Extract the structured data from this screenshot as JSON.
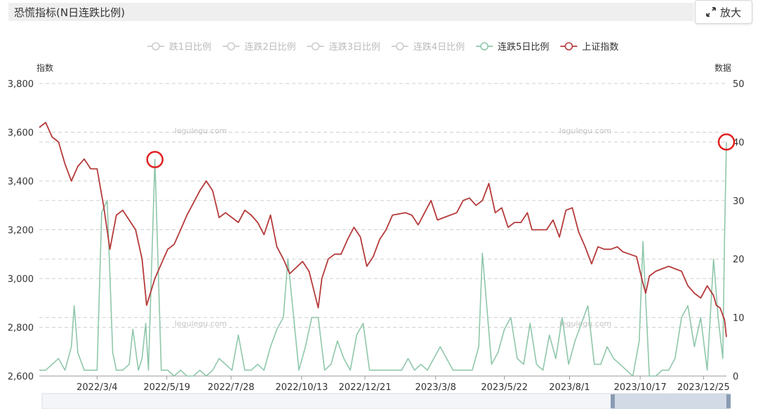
{
  "header": {
    "title": "恐慌指标(N日连跌比例)",
    "zoom_label": "放大"
  },
  "watermark": "legulegu.com",
  "chart_data": {
    "type": "line",
    "title": "恐慌指标(N日连跌比例)",
    "y_left_label": "指数",
    "y_right_label": "数据",
    "y_left_range": [
      2600,
      3800
    ],
    "y_left_ticks": [
      "2,600",
      "2,800",
      "3,000",
      "3,200",
      "3,400",
      "3,600",
      "3,800"
    ],
    "y_right_range": [
      0,
      50
    ],
    "y_right_ticks": [
      "0",
      "10",
      "20",
      "30",
      "40",
      "50"
    ],
    "x_range": [
      "2021-12-31",
      "2024-01-19"
    ],
    "x_ticks": [
      "2022/3/4",
      "2022/5/19",
      "2022/7/28",
      "2022/10/13",
      "2022/12/21",
      "2023/3/8",
      "2023/5/22",
      "2023/8/1",
      "2023/10/17",
      "2023/12/25"
    ],
    "legend": [
      {
        "name": "跌1日比例",
        "active": false,
        "color": "#cccccc"
      },
      {
        "name": "连跌2日比例",
        "active": false,
        "color": "#cccccc"
      },
      {
        "name": "连跌3日比例",
        "active": false,
        "color": "#cccccc"
      },
      {
        "name": "连跌4日比例",
        "active": false,
        "color": "#cccccc"
      },
      {
        "name": "连跌5日比例",
        "active": true,
        "color": "#8fc7aa"
      },
      {
        "name": "上证指数",
        "active": true,
        "color": "#b53a3a"
      }
    ],
    "series": [
      {
        "name": "上证指数",
        "axis": "left",
        "color": "#b53a3a",
        "points": [
          [
            "2021-12-31",
            3620
          ],
          [
            "2022-01-07",
            3640
          ],
          [
            "2022-01-14",
            3580
          ],
          [
            "2022-01-21",
            3560
          ],
          [
            "2022-01-28",
            3470
          ],
          [
            "2022-02-04",
            3400
          ],
          [
            "2022-02-11",
            3460
          ],
          [
            "2022-02-18",
            3490
          ],
          [
            "2022-02-25",
            3450
          ],
          [
            "2022-03-04",
            3450
          ],
          [
            "2022-03-11",
            3300
          ],
          [
            "2022-03-18",
            3120
          ],
          [
            "2022-03-25",
            3260
          ],
          [
            "2022-04-01",
            3280
          ],
          [
            "2022-04-08",
            3240
          ],
          [
            "2022-04-15",
            3200
          ],
          [
            "2022-04-22",
            3080
          ],
          [
            "2022-04-27",
            2890
          ],
          [
            "2022-05-06",
            3000
          ],
          [
            "2022-05-13",
            3060
          ],
          [
            "2022-05-20",
            3120
          ],
          [
            "2022-05-27",
            3140
          ],
          [
            "2022-06-03",
            3200
          ],
          [
            "2022-06-10",
            3260
          ],
          [
            "2022-06-17",
            3310
          ],
          [
            "2022-06-24",
            3360
          ],
          [
            "2022-07-01",
            3400
          ],
          [
            "2022-07-08",
            3360
          ],
          [
            "2022-07-15",
            3250
          ],
          [
            "2022-07-22",
            3270
          ],
          [
            "2022-07-29",
            3250
          ],
          [
            "2022-08-05",
            3230
          ],
          [
            "2022-08-12",
            3280
          ],
          [
            "2022-08-19",
            3260
          ],
          [
            "2022-08-26",
            3230
          ],
          [
            "2022-09-02",
            3180
          ],
          [
            "2022-09-09",
            3260
          ],
          [
            "2022-09-16",
            3130
          ],
          [
            "2022-09-23",
            3080
          ],
          [
            "2022-09-30",
            3020
          ],
          [
            "2022-10-14",
            3070
          ],
          [
            "2022-10-21",
            3030
          ],
          [
            "2022-10-31",
            2880
          ],
          [
            "2022-11-04",
            3000
          ],
          [
            "2022-11-11",
            3080
          ],
          [
            "2022-11-18",
            3100
          ],
          [
            "2022-11-25",
            3100
          ],
          [
            "2022-12-02",
            3160
          ],
          [
            "2022-12-09",
            3210
          ],
          [
            "2022-12-16",
            3170
          ],
          [
            "2022-12-23",
            3050
          ],
          [
            "2022-12-30",
            3090
          ],
          [
            "2023-01-06",
            3160
          ],
          [
            "2023-01-13",
            3200
          ],
          [
            "2023-01-20",
            3260
          ],
          [
            "2023-02-03",
            3270
          ],
          [
            "2023-02-10",
            3260
          ],
          [
            "2023-02-17",
            3220
          ],
          [
            "2023-02-24",
            3270
          ],
          [
            "2023-03-03",
            3320
          ],
          [
            "2023-03-10",
            3240
          ],
          [
            "2023-03-17",
            3250
          ],
          [
            "2023-03-24",
            3260
          ],
          [
            "2023-03-31",
            3270
          ],
          [
            "2023-04-07",
            3320
          ],
          [
            "2023-04-14",
            3330
          ],
          [
            "2023-04-21",
            3300
          ],
          [
            "2023-04-28",
            3320
          ],
          [
            "2023-05-05",
            3390
          ],
          [
            "2023-05-12",
            3270
          ],
          [
            "2023-05-19",
            3290
          ],
          [
            "2023-05-26",
            3210
          ],
          [
            "2023-06-02",
            3230
          ],
          [
            "2023-06-09",
            3230
          ],
          [
            "2023-06-16",
            3270
          ],
          [
            "2023-06-21",
            3200
          ],
          [
            "2023-06-30",
            3200
          ],
          [
            "2023-07-07",
            3200
          ],
          [
            "2023-07-14",
            3240
          ],
          [
            "2023-07-21",
            3170
          ],
          [
            "2023-07-28",
            3280
          ],
          [
            "2023-08-04",
            3290
          ],
          [
            "2023-08-11",
            3190
          ],
          [
            "2023-08-18",
            3130
          ],
          [
            "2023-08-25",
            3060
          ],
          [
            "2023-09-01",
            3130
          ],
          [
            "2023-09-08",
            3120
          ],
          [
            "2023-09-15",
            3120
          ],
          [
            "2023-09-22",
            3130
          ],
          [
            "2023-09-28",
            3110
          ],
          [
            "2023-10-13",
            3090
          ],
          [
            "2023-10-20",
            2980
          ],
          [
            "2023-10-23",
            2940
          ],
          [
            "2023-10-27",
            3010
          ],
          [
            "2023-11-03",
            3030
          ],
          [
            "2023-11-10",
            3040
          ],
          [
            "2023-11-17",
            3050
          ],
          [
            "2023-11-24",
            3040
          ],
          [
            "2023-12-01",
            3030
          ],
          [
            "2023-12-08",
            2970
          ],
          [
            "2023-12-15",
            2940
          ],
          [
            "2023-12-22",
            2920
          ],
          [
            "2023-12-29",
            2970
          ],
          [
            "2024-01-05",
            2930
          ],
          [
            "2024-01-08",
            2890
          ],
          [
            "2024-01-12",
            2880
          ],
          [
            "2024-01-17",
            2830
          ],
          [
            "2024-01-19",
            2760
          ]
        ]
      },
      {
        "name": "连跌5日比例",
        "axis": "right",
        "color": "#8fc7aa",
        "points": [
          [
            "2021-12-31",
            1
          ],
          [
            "2022-01-07",
            1
          ],
          [
            "2022-01-14",
            2
          ],
          [
            "2022-01-21",
            3
          ],
          [
            "2022-01-28",
            1
          ],
          [
            "2022-02-04",
            5
          ],
          [
            "2022-02-07",
            12
          ],
          [
            "2022-02-11",
            4
          ],
          [
            "2022-02-18",
            1
          ],
          [
            "2022-02-25",
            1
          ],
          [
            "2022-03-04",
            1
          ],
          [
            "2022-03-09",
            28
          ],
          [
            "2022-03-15",
            30
          ],
          [
            "2022-03-21",
            4
          ],
          [
            "2022-03-25",
            1
          ],
          [
            "2022-04-01",
            1
          ],
          [
            "2022-04-08",
            2
          ],
          [
            "2022-04-12",
            8
          ],
          [
            "2022-04-18",
            1
          ],
          [
            "2022-04-22",
            3
          ],
          [
            "2022-04-26",
            9
          ],
          [
            "2022-04-29",
            1
          ],
          [
            "2022-05-06",
            37
          ],
          [
            "2022-05-13",
            1
          ],
          [
            "2022-05-20",
            1
          ],
          [
            "2022-05-27",
            0
          ],
          [
            "2022-06-03",
            1
          ],
          [
            "2022-06-10",
            0
          ],
          [
            "2022-06-17",
            0
          ],
          [
            "2022-06-24",
            1
          ],
          [
            "2022-07-01",
            0
          ],
          [
            "2022-07-08",
            1
          ],
          [
            "2022-07-15",
            3
          ],
          [
            "2022-07-22",
            2
          ],
          [
            "2022-07-29",
            1
          ],
          [
            "2022-08-05",
            7
          ],
          [
            "2022-08-12",
            1
          ],
          [
            "2022-08-19",
            1
          ],
          [
            "2022-08-26",
            2
          ],
          [
            "2022-09-02",
            1
          ],
          [
            "2022-09-09",
            5
          ],
          [
            "2022-09-16",
            8
          ],
          [
            "2022-09-23",
            10
          ],
          [
            "2022-09-28",
            20
          ],
          [
            "2022-10-10",
            1
          ],
          [
            "2022-10-17",
            5
          ],
          [
            "2022-10-24",
            10
          ],
          [
            "2022-10-31",
            10
          ],
          [
            "2022-11-07",
            1
          ],
          [
            "2022-11-14",
            2
          ],
          [
            "2022-11-21",
            6
          ],
          [
            "2022-11-28",
            3
          ],
          [
            "2022-12-05",
            1
          ],
          [
            "2022-12-12",
            7
          ],
          [
            "2022-12-19",
            9
          ],
          [
            "2022-12-26",
            1
          ],
          [
            "2023-01-02",
            1
          ],
          [
            "2023-01-09",
            1
          ],
          [
            "2023-01-16",
            1
          ],
          [
            "2023-01-30",
            1
          ],
          [
            "2023-02-06",
            3
          ],
          [
            "2023-02-13",
            1
          ],
          [
            "2023-02-20",
            2
          ],
          [
            "2023-02-27",
            1
          ],
          [
            "2023-03-06",
            3
          ],
          [
            "2023-03-13",
            5
          ],
          [
            "2023-03-20",
            3
          ],
          [
            "2023-03-27",
            1
          ],
          [
            "2023-04-03",
            1
          ],
          [
            "2023-04-10",
            1
          ],
          [
            "2023-04-17",
            1
          ],
          [
            "2023-04-24",
            5
          ],
          [
            "2023-04-28",
            21
          ],
          [
            "2023-05-08",
            2
          ],
          [
            "2023-05-15",
            4
          ],
          [
            "2023-05-22",
            8
          ],
          [
            "2023-05-29",
            10
          ],
          [
            "2023-06-05",
            3
          ],
          [
            "2023-06-12",
            2
          ],
          [
            "2023-06-19",
            9
          ],
          [
            "2023-06-26",
            2
          ],
          [
            "2023-07-03",
            1
          ],
          [
            "2023-07-10",
            7
          ],
          [
            "2023-07-17",
            3
          ],
          [
            "2023-07-24",
            10
          ],
          [
            "2023-07-31",
            2
          ],
          [
            "2023-08-07",
            6
          ],
          [
            "2023-08-14",
            9
          ],
          [
            "2023-08-21",
            12
          ],
          [
            "2023-08-28",
            2
          ],
          [
            "2023-09-04",
            2
          ],
          [
            "2023-09-11",
            5
          ],
          [
            "2023-09-18",
            3
          ],
          [
            "2023-09-25",
            2
          ],
          [
            "2023-10-09",
            0
          ],
          [
            "2023-10-16",
            6
          ],
          [
            "2023-10-20",
            23
          ],
          [
            "2023-10-27",
            0
          ],
          [
            "2023-11-03",
            0
          ],
          [
            "2023-11-10",
            1
          ],
          [
            "2023-11-17",
            1
          ],
          [
            "2023-11-24",
            3
          ],
          [
            "2023-12-01",
            10
          ],
          [
            "2023-12-08",
            12
          ],
          [
            "2023-12-15",
            5
          ],
          [
            "2023-12-22",
            10
          ],
          [
            "2023-12-29",
            1
          ],
          [
            "2024-01-05",
            20
          ],
          [
            "2024-01-10",
            10
          ],
          [
            "2024-01-15",
            3
          ],
          [
            "2024-01-17",
            24
          ],
          [
            "2024-01-19",
            40
          ]
        ]
      }
    ],
    "annotations": [
      {
        "type": "circle",
        "color": "#e02020",
        "date": "2022-05-06",
        "value": 37,
        "axis": "right"
      },
      {
        "type": "circle",
        "color": "#e02020",
        "date": "2024-01-19",
        "value": 40,
        "axis": "right"
      }
    ],
    "grid": true,
    "legend_position": "top-center"
  }
}
